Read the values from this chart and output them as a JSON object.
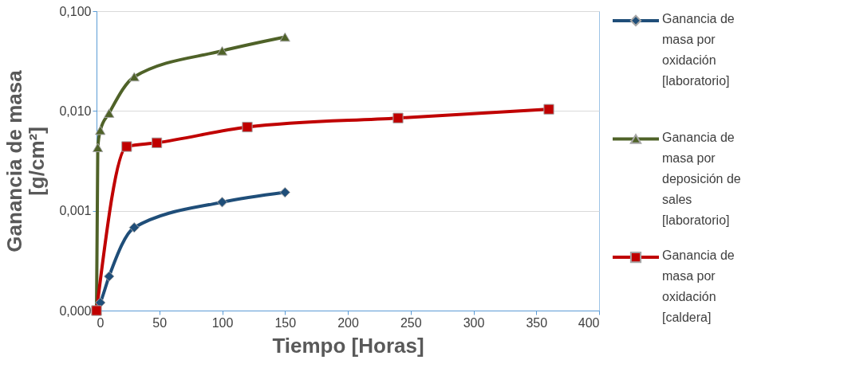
{
  "chart_data": {
    "type": "line",
    "xlabel": "Tiempo [Horas]",
    "ylabel": "Ganancia de masa [g/cm²]",
    "log": "y",
    "grid": "y",
    "legend": "right",
    "xlim": [
      0,
      400
    ],
    "xticks": [
      0,
      50,
      100,
      150,
      200,
      250,
      300,
      350,
      400
    ],
    "ylim": [
      0.0001,
      0.1
    ],
    "yticks": [
      {
        "value": 0.0001,
        "label": "0,000"
      },
      {
        "value": 0.001,
        "label": "0,001"
      },
      {
        "value": 0.01,
        "label": "0,010"
      },
      {
        "value": 0.1,
        "label": "0,100"
      }
    ],
    "series": [
      {
        "name": "Ganancia de masa por oxidación [laboratorio]",
        "color": "#1f4e79",
        "marker": "diamond",
        "x": [
          0,
          3,
          10,
          30,
          100,
          150
        ],
        "values": [
          0.0001,
          0.00012,
          0.00022,
          0.00068,
          0.00122,
          0.00153
        ]
      },
      {
        "name": "Ganancia de masa por deposición de sales [laboratorio]",
        "color": "#4f6228",
        "marker": "triangle",
        "x": [
          0,
          1,
          3,
          10,
          30,
          100,
          150
        ],
        "values": [
          0.0001,
          0.0043,
          0.0064,
          0.0095,
          0.022,
          0.04,
          0.055
        ]
      },
      {
        "name": "Ganancia de masa por oxidación [caldera]",
        "color": "#c00000",
        "marker": "square",
        "x": [
          0,
          24,
          48,
          120,
          240,
          360
        ],
        "values": [
          0.0001,
          0.0044,
          0.0048,
          0.0069,
          0.0085,
          0.0104
        ]
      }
    ]
  }
}
